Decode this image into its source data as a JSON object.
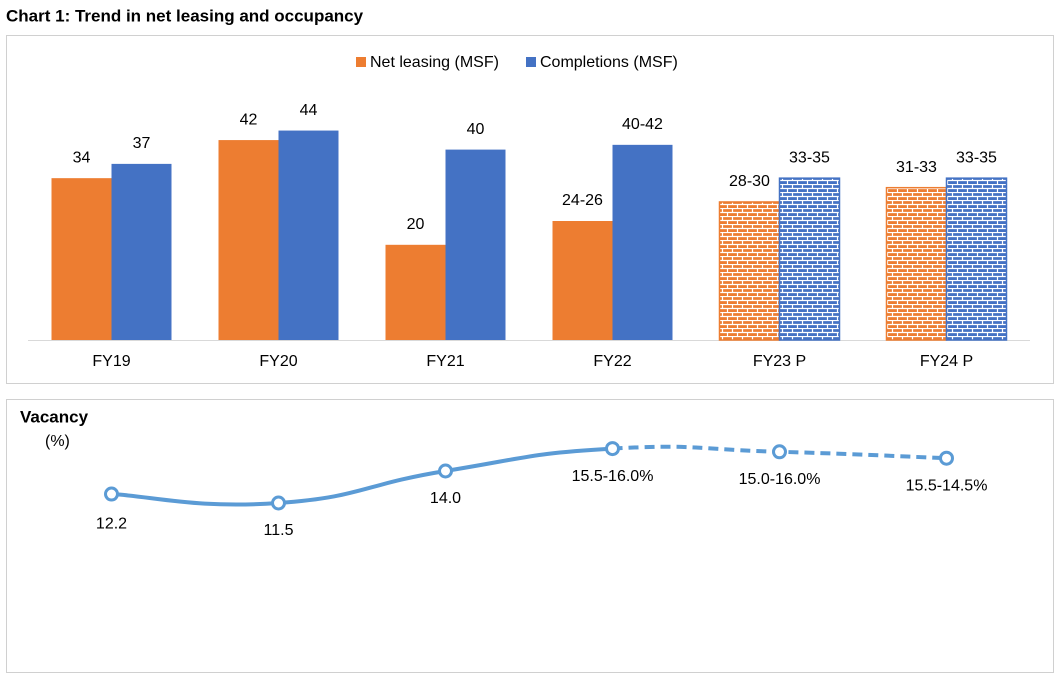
{
  "chart_data": [
    {
      "type": "bar",
      "title": "Chart 1: Trend in net leasing and occupancy",
      "categories": [
        "FY19",
        "FY20",
        "FY21",
        "FY22",
        "FY23 P",
        "FY24 P"
      ],
      "projected": [
        false,
        false,
        false,
        false,
        true,
        true
      ],
      "series": [
        {
          "name": "Net leasing (MSF)",
          "color": "#ed7d31",
          "values": [
            34,
            42,
            20,
            25,
            29,
            32
          ],
          "value_labels": [
            "34",
            "42",
            "20",
            "24-26",
            "28-30",
            "31-33"
          ]
        },
        {
          "name": "Completions (MSF)",
          "color": "#4472c4",
          "values": [
            37,
            44,
            40,
            41,
            34,
            34
          ],
          "value_labels": [
            "37",
            "44",
            "40",
            "40-42",
            "33-35",
            "33-35"
          ]
        }
      ],
      "ylim": [
        0,
        50
      ],
      "legend": "top"
    },
    {
      "type": "line",
      "title": "Vacancy",
      "subtitle": "(%)",
      "categories": [
        null,
        null,
        null,
        null,
        null,
        null
      ],
      "projected": [
        false,
        false,
        false,
        false,
        true,
        true
      ],
      "series": [
        {
          "name": "Vacancy",
          "color": "#5b9bd5",
          "values": [
            12.2,
            11.5,
            14.0,
            15.75,
            15.5,
            15.0
          ],
          "value_labels": [
            "12.2",
            "11.5",
            "14.0",
            "15.5-16.0%",
            "15.0-16.0%",
            "15.5-14.5%"
          ]
        }
      ],
      "ylim": [
        8,
        18
      ]
    }
  ]
}
